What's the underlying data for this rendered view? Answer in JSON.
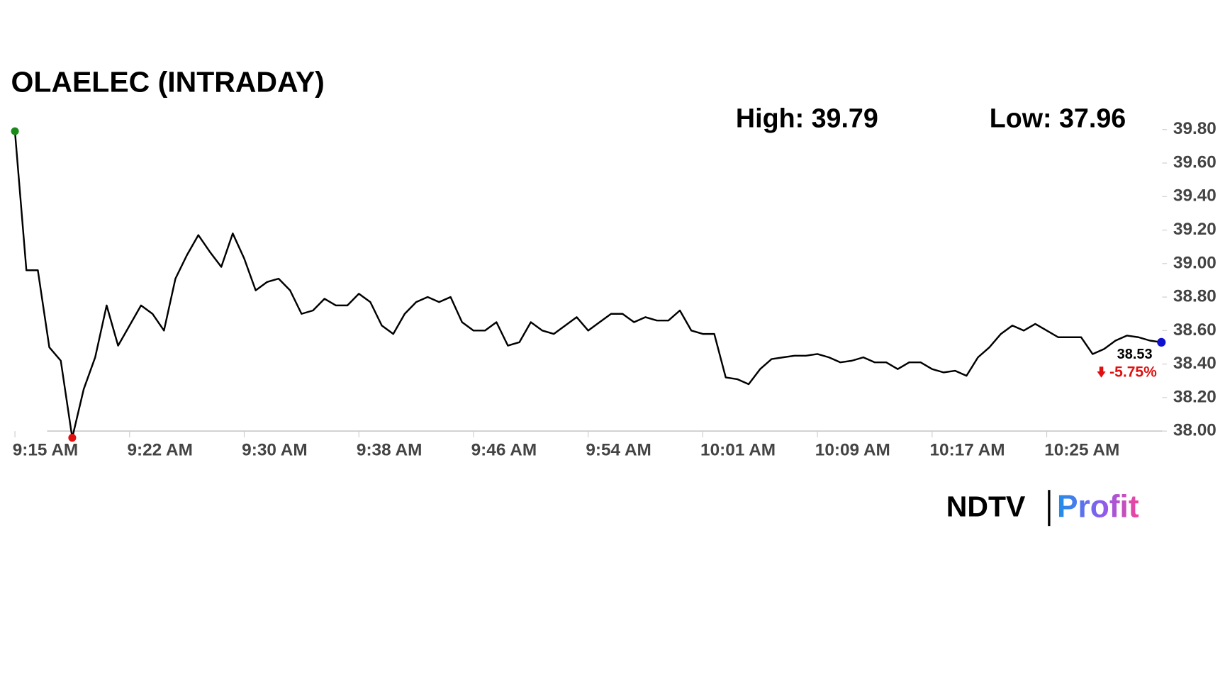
{
  "chart_data": {
    "type": "line",
    "title": "OLAELEC (INTRADAY)",
    "annotations": [
      "High: 39.79",
      "Low: 37.96",
      "-5.75%"
    ],
    "color": "#000000",
    "start_color": "#1a8a1a",
    "low_color": "#e01010",
    "end_color": "#1010d0",
    "categories": [
      "9:15 AM",
      null,
      null,
      null,
      null,
      null,
      null,
      null,
      null,
      null,
      "9:22 AM",
      null,
      null,
      null,
      null,
      null,
      null,
      null,
      null,
      null,
      "9:30 AM",
      null,
      null,
      null,
      null,
      null,
      null,
      null,
      null,
      null,
      "9:38 AM",
      null,
      null,
      null,
      null,
      null,
      null,
      null,
      null,
      null,
      "9:46 AM",
      null,
      null,
      null,
      null,
      null,
      null,
      null,
      null,
      null,
      "9:54 AM",
      null,
      null,
      null,
      null,
      null,
      null,
      null,
      null,
      null,
      "10:01 AM",
      null,
      null,
      null,
      null,
      null,
      null,
      null,
      null,
      null,
      "10:09 AM",
      null,
      null,
      null,
      null,
      null,
      null,
      null,
      null,
      null,
      "10:17 AM",
      null,
      null,
      null,
      null,
      null,
      null,
      null,
      null,
      null,
      "10:25 AM",
      null,
      null,
      null,
      null,
      null,
      null,
      null,
      null,
      null,
      null
    ],
    "values": [
      39.79,
      38.96,
      38.96,
      38.5,
      38.42,
      37.96,
      38.25,
      38.44,
      38.75,
      38.51,
      38.63,
      38.75,
      38.7,
      38.6,
      38.91,
      39.05,
      39.17,
      39.07,
      38.98,
      39.18,
      39.03,
      38.84,
      38.89,
      38.91,
      38.84,
      38.7,
      38.72,
      38.79,
      38.75,
      38.75,
      38.82,
      38.77,
      38.63,
      38.58,
      38.7,
      38.77,
      38.8,
      38.77,
      38.8,
      38.65,
      38.6,
      38.6,
      38.65,
      38.51,
      38.53,
      38.65,
      38.6,
      38.58,
      38.63,
      38.68,
      38.6,
      38.65,
      38.7,
      38.7,
      38.65,
      38.68,
      38.66,
      38.66,
      38.72,
      38.6,
      38.58,
      38.58,
      38.32,
      38.31,
      38.28,
      38.37,
      38.43,
      38.44,
      38.45,
      38.45,
      38.46,
      38.44,
      38.41,
      38.42,
      38.44,
      38.41,
      38.41,
      38.37,
      38.41,
      38.41,
      38.37,
      38.35,
      38.36,
      38.33,
      38.44,
      38.5,
      38.58,
      38.63,
      38.6,
      38.64,
      38.6,
      38.56,
      38.56,
      38.56,
      38.46,
      38.49,
      38.54,
      38.57,
      38.56,
      38.54,
      38.53
    ],
    "ylim": [
      38,
      39.8
    ],
    "yticks": [
      {
        "value": 38,
        "label": "38.00"
      },
      {
        "value": 38.2,
        "label": "38.20"
      },
      {
        "value": 38.4,
        "label": "38.40"
      },
      {
        "value": 38.6,
        "label": "38.60"
      },
      {
        "value": 38.8,
        "label": "38.80"
      },
      {
        "value": 39,
        "label": "39.00"
      },
      {
        "value": 39.2,
        "label": "39.20"
      },
      {
        "value": 39.4,
        "label": "39.40"
      },
      {
        "value": 39.6,
        "label": "39.60"
      },
      {
        "value": 39.8,
        "label": "39.80"
      }
    ]
  },
  "branding": {
    "left": "NDTV",
    "right": "Profit"
  }
}
